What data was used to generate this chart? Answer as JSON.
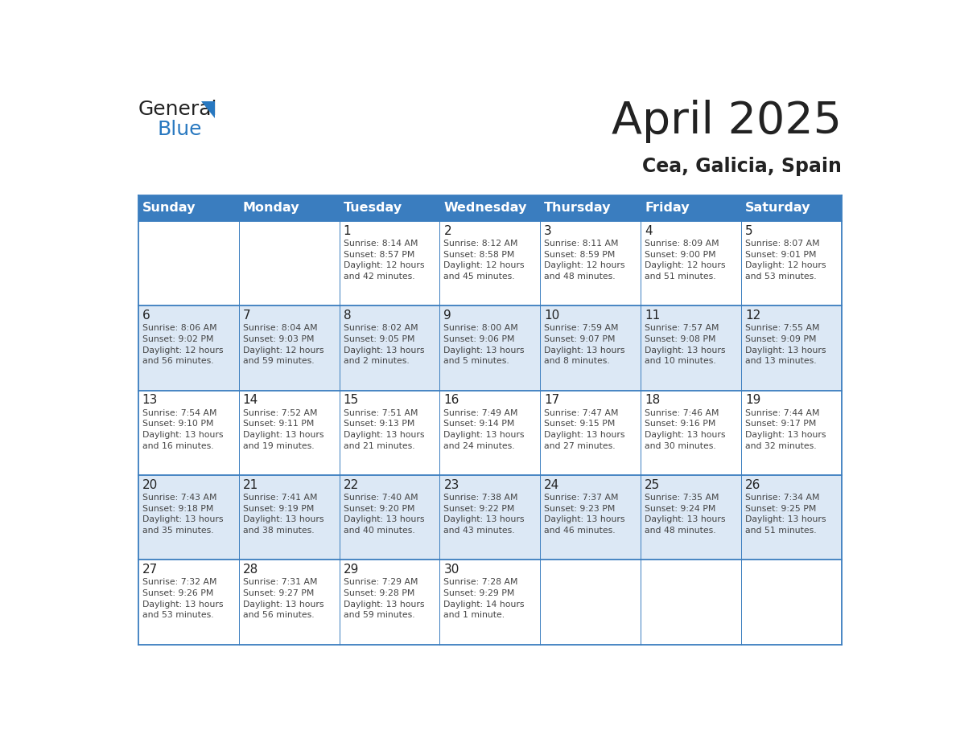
{
  "title": "April 2025",
  "subtitle": "Cea, Galicia, Spain",
  "days_of_week": [
    "Sunday",
    "Monday",
    "Tuesday",
    "Wednesday",
    "Thursday",
    "Friday",
    "Saturday"
  ],
  "header_bg": "#3a7dbf",
  "header_text": "#ffffff",
  "row_bg_even": "#ffffff",
  "row_bg_odd": "#dce8f5",
  "cell_text_color": "#444444",
  "day_num_color": "#222222",
  "grid_color": "#3a7dbf",
  "title_color": "#222222",
  "subtitle_color": "#222222",
  "logo_general_color": "#222222",
  "logo_blue_color": "#2878c0",
  "logo_tri_color": "#2878c0",
  "weeks": [
    [
      {
        "day": null,
        "info": null
      },
      {
        "day": null,
        "info": null
      },
      {
        "day": 1,
        "info": "Sunrise: 8:14 AM\nSunset: 8:57 PM\nDaylight: 12 hours\nand 42 minutes."
      },
      {
        "day": 2,
        "info": "Sunrise: 8:12 AM\nSunset: 8:58 PM\nDaylight: 12 hours\nand 45 minutes."
      },
      {
        "day": 3,
        "info": "Sunrise: 8:11 AM\nSunset: 8:59 PM\nDaylight: 12 hours\nand 48 minutes."
      },
      {
        "day": 4,
        "info": "Sunrise: 8:09 AM\nSunset: 9:00 PM\nDaylight: 12 hours\nand 51 minutes."
      },
      {
        "day": 5,
        "info": "Sunrise: 8:07 AM\nSunset: 9:01 PM\nDaylight: 12 hours\nand 53 minutes."
      }
    ],
    [
      {
        "day": 6,
        "info": "Sunrise: 8:06 AM\nSunset: 9:02 PM\nDaylight: 12 hours\nand 56 minutes."
      },
      {
        "day": 7,
        "info": "Sunrise: 8:04 AM\nSunset: 9:03 PM\nDaylight: 12 hours\nand 59 minutes."
      },
      {
        "day": 8,
        "info": "Sunrise: 8:02 AM\nSunset: 9:05 PM\nDaylight: 13 hours\nand 2 minutes."
      },
      {
        "day": 9,
        "info": "Sunrise: 8:00 AM\nSunset: 9:06 PM\nDaylight: 13 hours\nand 5 minutes."
      },
      {
        "day": 10,
        "info": "Sunrise: 7:59 AM\nSunset: 9:07 PM\nDaylight: 13 hours\nand 8 minutes."
      },
      {
        "day": 11,
        "info": "Sunrise: 7:57 AM\nSunset: 9:08 PM\nDaylight: 13 hours\nand 10 minutes."
      },
      {
        "day": 12,
        "info": "Sunrise: 7:55 AM\nSunset: 9:09 PM\nDaylight: 13 hours\nand 13 minutes."
      }
    ],
    [
      {
        "day": 13,
        "info": "Sunrise: 7:54 AM\nSunset: 9:10 PM\nDaylight: 13 hours\nand 16 minutes."
      },
      {
        "day": 14,
        "info": "Sunrise: 7:52 AM\nSunset: 9:11 PM\nDaylight: 13 hours\nand 19 minutes."
      },
      {
        "day": 15,
        "info": "Sunrise: 7:51 AM\nSunset: 9:13 PM\nDaylight: 13 hours\nand 21 minutes."
      },
      {
        "day": 16,
        "info": "Sunrise: 7:49 AM\nSunset: 9:14 PM\nDaylight: 13 hours\nand 24 minutes."
      },
      {
        "day": 17,
        "info": "Sunrise: 7:47 AM\nSunset: 9:15 PM\nDaylight: 13 hours\nand 27 minutes."
      },
      {
        "day": 18,
        "info": "Sunrise: 7:46 AM\nSunset: 9:16 PM\nDaylight: 13 hours\nand 30 minutes."
      },
      {
        "day": 19,
        "info": "Sunrise: 7:44 AM\nSunset: 9:17 PM\nDaylight: 13 hours\nand 32 minutes."
      }
    ],
    [
      {
        "day": 20,
        "info": "Sunrise: 7:43 AM\nSunset: 9:18 PM\nDaylight: 13 hours\nand 35 minutes."
      },
      {
        "day": 21,
        "info": "Sunrise: 7:41 AM\nSunset: 9:19 PM\nDaylight: 13 hours\nand 38 minutes."
      },
      {
        "day": 22,
        "info": "Sunrise: 7:40 AM\nSunset: 9:20 PM\nDaylight: 13 hours\nand 40 minutes."
      },
      {
        "day": 23,
        "info": "Sunrise: 7:38 AM\nSunset: 9:22 PM\nDaylight: 13 hours\nand 43 minutes."
      },
      {
        "day": 24,
        "info": "Sunrise: 7:37 AM\nSunset: 9:23 PM\nDaylight: 13 hours\nand 46 minutes."
      },
      {
        "day": 25,
        "info": "Sunrise: 7:35 AM\nSunset: 9:24 PM\nDaylight: 13 hours\nand 48 minutes."
      },
      {
        "day": 26,
        "info": "Sunrise: 7:34 AM\nSunset: 9:25 PM\nDaylight: 13 hours\nand 51 minutes."
      }
    ],
    [
      {
        "day": 27,
        "info": "Sunrise: 7:32 AM\nSunset: 9:26 PM\nDaylight: 13 hours\nand 53 minutes."
      },
      {
        "day": 28,
        "info": "Sunrise: 7:31 AM\nSunset: 9:27 PM\nDaylight: 13 hours\nand 56 minutes."
      },
      {
        "day": 29,
        "info": "Sunrise: 7:29 AM\nSunset: 9:28 PM\nDaylight: 13 hours\nand 59 minutes."
      },
      {
        "day": 30,
        "info": "Sunrise: 7:28 AM\nSunset: 9:29 PM\nDaylight: 14 hours\nand 1 minute."
      },
      {
        "day": null,
        "info": null
      },
      {
        "day": null,
        "info": null
      },
      {
        "day": null,
        "info": null
      }
    ]
  ]
}
